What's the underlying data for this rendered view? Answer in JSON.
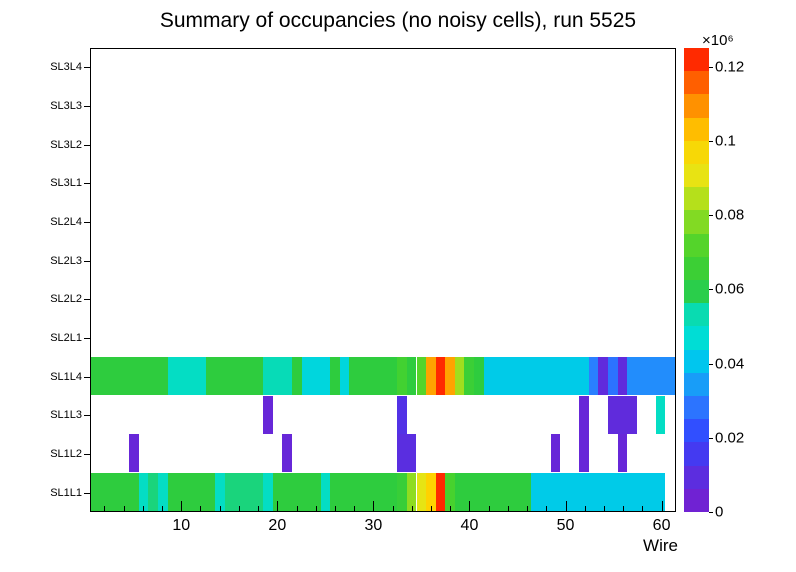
{
  "chart_data": {
    "type": "heatmap",
    "title": "Summary of occupancies (no noisy cells), run 5525",
    "xlabel": "Wire",
    "x_range": [
      0.5,
      61.5
    ],
    "x_major_ticks": [
      10,
      20,
      30,
      40,
      50,
      60
    ],
    "x_minor_tick_step": 2,
    "rows_bottom_to_top": [
      "SL1L1",
      "SL1L2",
      "SL1L3",
      "SL1L4",
      "SL2L1",
      "SL2L2",
      "SL2L3",
      "SL2L4",
      "SL3L1",
      "SL3L2",
      "SL3L3",
      "SL3L4"
    ],
    "empty_rows": [
      "SL2L1",
      "SL2L2",
      "SL2L3",
      "SL2L4",
      "SL3L1",
      "SL3L2",
      "SL3L3",
      "SL3L4"
    ],
    "z_range": [
      0,
      0.125
    ],
    "colorbar": {
      "exponent_label": "×10⁶",
      "tick_labels": [
        "0",
        "0.02",
        "0.04",
        "0.06",
        "0.08",
        "0.1",
        "0.12"
      ],
      "tick_values": [
        0,
        0.02,
        0.04,
        0.06,
        0.08,
        0.1,
        0.12
      ],
      "segments": 20
    },
    "palette_stops": [
      [
        0.0,
        "#7a1dcd"
      ],
      [
        0.08,
        "#5a2ee0"
      ],
      [
        0.16,
        "#3344ff"
      ],
      [
        0.24,
        "#2a7fff"
      ],
      [
        0.32,
        "#00c4f0"
      ],
      [
        0.38,
        "#00dfd3"
      ],
      [
        0.44,
        "#0cd9a5"
      ],
      [
        0.48,
        "#2ecc3e"
      ],
      [
        0.56,
        "#47d22e"
      ],
      [
        0.64,
        "#8fdc20"
      ],
      [
        0.72,
        "#e6e414"
      ],
      [
        0.8,
        "#ffd200"
      ],
      [
        0.86,
        "#ffa000"
      ],
      [
        0.92,
        "#ff6400"
      ],
      [
        1.0,
        "#ff0f00"
      ]
    ],
    "series": [
      {
        "row": "SL1L1",
        "values": [
          0.06,
          0.06,
          0.06,
          0.06,
          0.06,
          0.05,
          0.057,
          0.05,
          0.06,
          0.06,
          0.06,
          0.06,
          0.06,
          0.05,
          0.057,
          0.057,
          0.057,
          0.057,
          0.05,
          0.06,
          0.06,
          0.06,
          0.06,
          0.06,
          0.05,
          0.06,
          0.06,
          0.06,
          0.06,
          0.06,
          0.06,
          0.06,
          0.064,
          0.08,
          0.09,
          0.1,
          0.122,
          0.07,
          0.06,
          0.06,
          0.06,
          0.06,
          0.06,
          0.06,
          0.06,
          0.06,
          0.042,
          0.042,
          0.042,
          0.042,
          0.042,
          0.042,
          0.042,
          0.042,
          0.042,
          0.042,
          0.042,
          0.042,
          0.042,
          0.042,
          0
        ]
      },
      {
        "row": "SL1L2",
        "sparse": {
          "5": 0.006,
          "21": 0.006,
          "33": 0.01,
          "34": 0.01,
          "49": 0.006,
          "52": 0.006,
          "56": 0.006
        }
      },
      {
        "row": "SL1L3",
        "sparse": {
          "19": 0.006,
          "33": 0.012,
          "52": 0.006,
          "55": 0.008,
          "56": 0.008,
          "57": 0.008,
          "60": 0.05
        }
      },
      {
        "row": "SL1L4",
        "values": [
          0.06,
          0.06,
          0.06,
          0.06,
          0.06,
          0.06,
          0.06,
          0.06,
          0.05,
          0.05,
          0.05,
          0.05,
          0.06,
          0.06,
          0.06,
          0.06,
          0.06,
          0.06,
          0.052,
          0.052,
          0.052,
          0.06,
          0.045,
          0.045,
          0.045,
          0.06,
          0.045,
          0.06,
          0.06,
          0.06,
          0.06,
          0.06,
          0.068,
          0.06,
          0.072,
          0.107,
          0.122,
          0.107,
          0.082,
          0.065,
          0.06,
          0.042,
          0.042,
          0.042,
          0.042,
          0.042,
          0.042,
          0.042,
          0.042,
          0.042,
          0.042,
          0.042,
          0.03,
          0.008,
          0.028,
          0.008,
          0.032,
          0.032,
          0.032,
          0.032,
          0.032
        ]
      }
    ]
  }
}
